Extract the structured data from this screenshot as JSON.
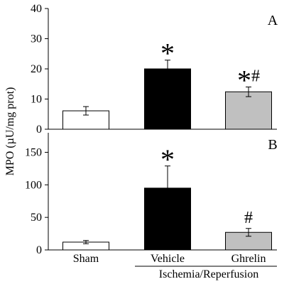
{
  "figure": {
    "ylabel": "MPO (µU/mg prot)",
    "group_label": "Ischemia/Reperfusion"
  },
  "chart_data": [
    {
      "type": "bar",
      "panel_letter": "A",
      "categories": [
        "Sham",
        "Vehicle",
        "Ghrelin"
      ],
      "values": [
        6.1,
        20.0,
        12.4
      ],
      "errors": [
        1.4,
        2.9,
        1.6
      ],
      "annotations": [
        "",
        "*",
        "*#"
      ],
      "bar_colors": [
        "#ffffff",
        "#000000",
        "#c0c0c0"
      ],
      "yticks": [
        "0",
        "10",
        "20",
        "30",
        "40"
      ],
      "ylim": [
        0,
        40
      ],
      "grid": false
    },
    {
      "type": "bar",
      "panel_letter": "B",
      "categories": [
        "Sham",
        "Vehicle",
        "Ghrelin"
      ],
      "values": [
        12,
        95,
        27
      ],
      "errors": [
        2.5,
        34,
        6
      ],
      "annotations": [
        "",
        "*",
        "#"
      ],
      "bar_colors": [
        "#ffffff",
        "#000000",
        "#c0c0c0"
      ],
      "yticks": [
        "0",
        "50",
        "100",
        "150"
      ],
      "ylim": [
        0,
        180
      ],
      "grid": false
    }
  ]
}
